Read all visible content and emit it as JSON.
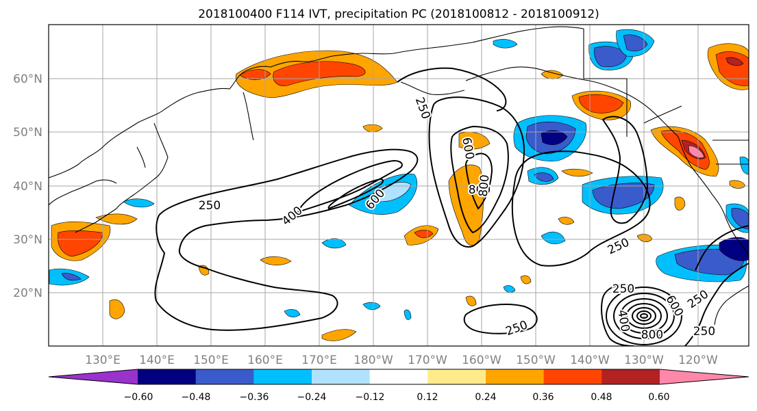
{
  "title": "2018100400 F114 IVT, precipitation PC (2018100812 - 2018100912)",
  "map": {
    "lon_labels": [
      "130°E",
      "140°E",
      "150°E",
      "160°E",
      "170°E",
      "180°W",
      "170°W",
      "160°W",
      "150°W",
      "140°W",
      "130°W",
      "120°W"
    ],
    "lat_labels": [
      "60°N",
      "50°N",
      "40°N",
      "30°N",
      "20°N"
    ],
    "grid": true,
    "coastline_color": "#000000",
    "contour_color": "#000000",
    "contour_levels": [
      "250",
      "400",
      "600",
      "800"
    ],
    "contour_labels": [
      "250",
      "250",
      "400",
      "600",
      "250",
      "600",
      "800",
      "800",
      "250",
      "250",
      "250",
      "400",
      "600",
      "800",
      "250"
    ]
  },
  "colorbar": {
    "orientation": "horizontal",
    "extend": "both",
    "ticks": [
      "−0.60",
      "−0.48",
      "−0.36",
      "−0.24",
      "−0.12",
      "0.12",
      "0.24",
      "0.36",
      "0.48",
      "0.60"
    ],
    "colors": [
      "#9933cc",
      "#000080",
      "#3a5bcc",
      "#00bfff",
      "#b0e2ff",
      "#ffffff",
      "#ffeb8a",
      "#ffa500",
      "#ff4500",
      "#b22222",
      "#ff88aa"
    ]
  }
}
